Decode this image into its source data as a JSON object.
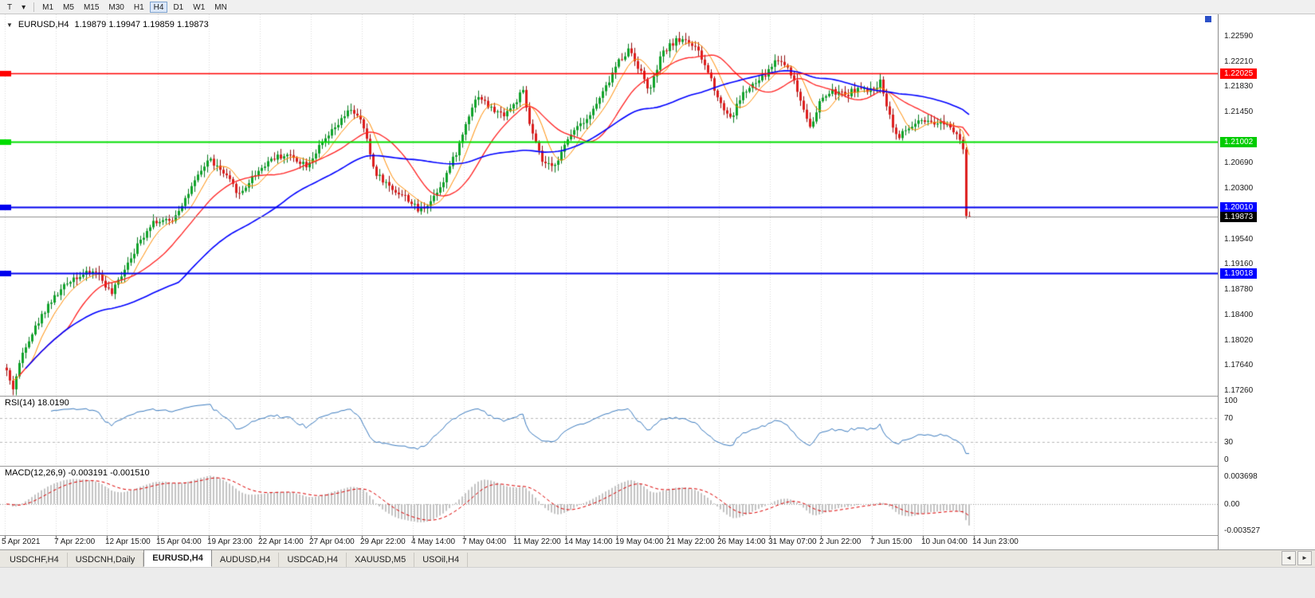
{
  "toolbar": {
    "template_label": "T",
    "caret_icon": "▾",
    "timeframes": [
      "M1",
      "M5",
      "M15",
      "M30",
      "H1",
      "H4",
      "D1",
      "W1",
      "MN"
    ],
    "active_timeframe": "H4"
  },
  "chart": {
    "menu_marker": "▼",
    "title_symbol": "EURUSD,H4",
    "title_quotes": "1.19879 1.19947 1.19859 1.19873"
  },
  "rsi": {
    "label": "RSI(14) 18.0190",
    "period": 14,
    "axis": [
      {
        "label": "100",
        "value": 100
      },
      {
        "label": "70",
        "value": 70
      },
      {
        "label": "30",
        "value": 30
      },
      {
        "label": "0",
        "value": 0
      }
    ],
    "line_color": "#3b7bbf"
  },
  "macd": {
    "label": "MACD(12,26,9) -0.003191 -0.001510",
    "fast": 12,
    "slow": 26,
    "signal": 9,
    "axis": [
      {
        "label": "0.003698",
        "value": 0.003698
      },
      {
        "label": "0.00",
        "value": 0
      },
      {
        "label": "-0.003527",
        "value": -0.003527
      }
    ],
    "histogram_color": "#c4c4c4",
    "signal_color": "#dd0000"
  },
  "price_axis": {
    "ticks": [
      "1.22590",
      "1.22210",
      "1.21830",
      "1.21450",
      "1.20690",
      "1.20300",
      "1.19540",
      "1.19160",
      "1.18780",
      "1.18400",
      "1.18020",
      "1.17640",
      "1.17260"
    ],
    "badges": [
      {
        "label": "1.22025",
        "price": 1.22025,
        "bg": "#ff0000",
        "fg": "#ffffff"
      },
      {
        "label": "1.21002",
        "price": 1.21002,
        "bg": "#00cc00",
        "fg": "#ffffff"
      },
      {
        "label": "1.20010",
        "price": 1.2001,
        "bg": "#0000ff",
        "fg": "#ffffff"
      },
      {
        "label": "1.19873",
        "price": 1.19873,
        "bg": "#000000",
        "fg": "#ffffff"
      },
      {
        "label": "1.19018",
        "price": 1.19018,
        "bg": "#0000ff",
        "fg": "#ffffff"
      }
    ]
  },
  "time_axis": [
    "5 Apr 2021",
    "7 Apr 22:00",
    "12 Apr 15:00",
    "15 Apr 04:00",
    "19 Apr 23:00",
    "22 Apr 14:00",
    "27 Apr 04:00",
    "29 Apr 22:00",
    "4 May 14:00",
    "7 May 04:00",
    "11 May 22:00",
    "14 May 14:00",
    "19 May 04:00",
    "21 May 22:00",
    "26 May 14:00",
    "31 May 07:00",
    "2 Jun 22:00",
    "7 Jun 15:00",
    "10 Jun 04:00",
    "14 Jun 23:00"
  ],
  "tabs": {
    "items": [
      "USDCHF,H4",
      "USDCNH,Daily",
      "EURUSD,H4",
      "AUDUSD,H4",
      "USDCAD,H4",
      "XAUUSD,M5",
      "USOil,H4"
    ],
    "active": "EURUSD,H4",
    "scroll_left_icon": "◄",
    "scroll_right_icon": "►"
  },
  "chart_data": {
    "type": "candlestick",
    "symbol": "EURUSD",
    "timeframe": "H4",
    "bars": 303,
    "noise_seed": 42,
    "price_range_labels": {
      "top": 1.2259,
      "bottom": 1.1726
    },
    "last_candle": {
      "open": 1.19879,
      "high": 1.19947,
      "low": 1.19859,
      "close": 1.19873
    },
    "crash_low": 1.1984,
    "price_path": [
      [
        0.0,
        1.1755
      ],
      [
        0.006,
        1.1726
      ],
      [
        0.018,
        1.179
      ],
      [
        0.043,
        1.1855
      ],
      [
        0.068,
        1.1895
      ],
      [
        0.093,
        1.1905
      ],
      [
        0.109,
        1.187
      ],
      [
        0.126,
        1.192
      ],
      [
        0.151,
        1.198
      ],
      [
        0.171,
        1.198
      ],
      [
        0.192,
        1.203
      ],
      [
        0.21,
        1.2075
      ],
      [
        0.229,
        1.2045
      ],
      [
        0.242,
        1.202
      ],
      [
        0.257,
        1.205
      ],
      [
        0.275,
        1.2075
      ],
      [
        0.291,
        1.208
      ],
      [
        0.312,
        1.2065
      ],
      [
        0.324,
        1.209
      ],
      [
        0.341,
        1.212
      ],
      [
        0.358,
        1.215
      ],
      [
        0.37,
        1.2125
      ],
      [
        0.382,
        1.2055
      ],
      [
        0.399,
        1.203
      ],
      [
        0.416,
        1.2015
      ],
      [
        0.428,
        1.1995
      ],
      [
        0.44,
        1.201
      ],
      [
        0.453,
        1.204
      ],
      [
        0.469,
        1.209
      ],
      [
        0.482,
        1.215
      ],
      [
        0.49,
        1.217
      ],
      [
        0.502,
        1.215
      ],
      [
        0.515,
        1.214
      ],
      [
        0.527,
        1.2155
      ],
      [
        0.536,
        1.2177
      ],
      [
        0.544,
        1.212
      ],
      [
        0.556,
        1.207
      ],
      [
        0.566,
        1.206
      ],
      [
        0.577,
        1.2085
      ],
      [
        0.589,
        1.212
      ],
      [
        0.606,
        1.214
      ],
      [
        0.622,
        1.218
      ],
      [
        0.635,
        1.222
      ],
      [
        0.647,
        1.224
      ],
      [
        0.66,
        1.22
      ],
      [
        0.668,
        1.2175
      ],
      [
        0.68,
        1.223
      ],
      [
        0.693,
        1.225
      ],
      [
        0.705,
        1.2255
      ],
      [
        0.718,
        1.2235
      ],
      [
        0.73,
        1.22
      ],
      [
        0.742,
        1.2155
      ],
      [
        0.753,
        1.2135
      ],
      [
        0.763,
        1.217
      ],
      [
        0.776,
        1.2185
      ],
      [
        0.788,
        1.22
      ],
      [
        0.8,
        1.2225
      ],
      [
        0.813,
        1.221
      ],
      [
        0.825,
        1.216
      ],
      [
        0.836,
        1.212
      ],
      [
        0.846,
        1.2165
      ],
      [
        0.858,
        1.2175
      ],
      [
        0.871,
        1.217
      ],
      [
        0.883,
        1.218
      ],
      [
        0.896,
        1.2175
      ],
      [
        0.908,
        1.219
      ],
      [
        0.916,
        1.2145
      ],
      [
        0.925,
        1.2105
      ],
      [
        0.937,
        1.212
      ],
      [
        0.949,
        1.213
      ],
      [
        0.962,
        1.2125
      ],
      [
        0.974,
        1.213
      ],
      [
        0.986,
        1.2115
      ],
      [
        0.993,
        1.21
      ],
      [
        0.9967,
        1.199
      ],
      [
        1.0,
        1.19873
      ]
    ],
    "moving_averages": [
      {
        "name": "fast",
        "period": 8,
        "color": "#ff8c00"
      },
      {
        "name": "medium",
        "period": 20,
        "color": "#ff2020"
      },
      {
        "name": "slow",
        "period": 55,
        "color": "#0000ff"
      }
    ],
    "candle_colors": {
      "up_body": "#0fa32a",
      "up_wick": "#067a1e",
      "down_body": "#dd1d1d",
      "down_wick": "#8f0e0e"
    },
    "levels": [
      {
        "price": 1.22025,
        "color": "#ff0000",
        "width": 1.5
      },
      {
        "price": 1.21002,
        "color": "#00dd00",
        "width": 2
      },
      {
        "price": 1.2001,
        "color": "#0000ee",
        "width": 2
      },
      {
        "price": 1.19018,
        "color": "#0000ee",
        "width": 2
      }
    ],
    "bid": {
      "price": 1.19873,
      "color": "#909090"
    }
  }
}
